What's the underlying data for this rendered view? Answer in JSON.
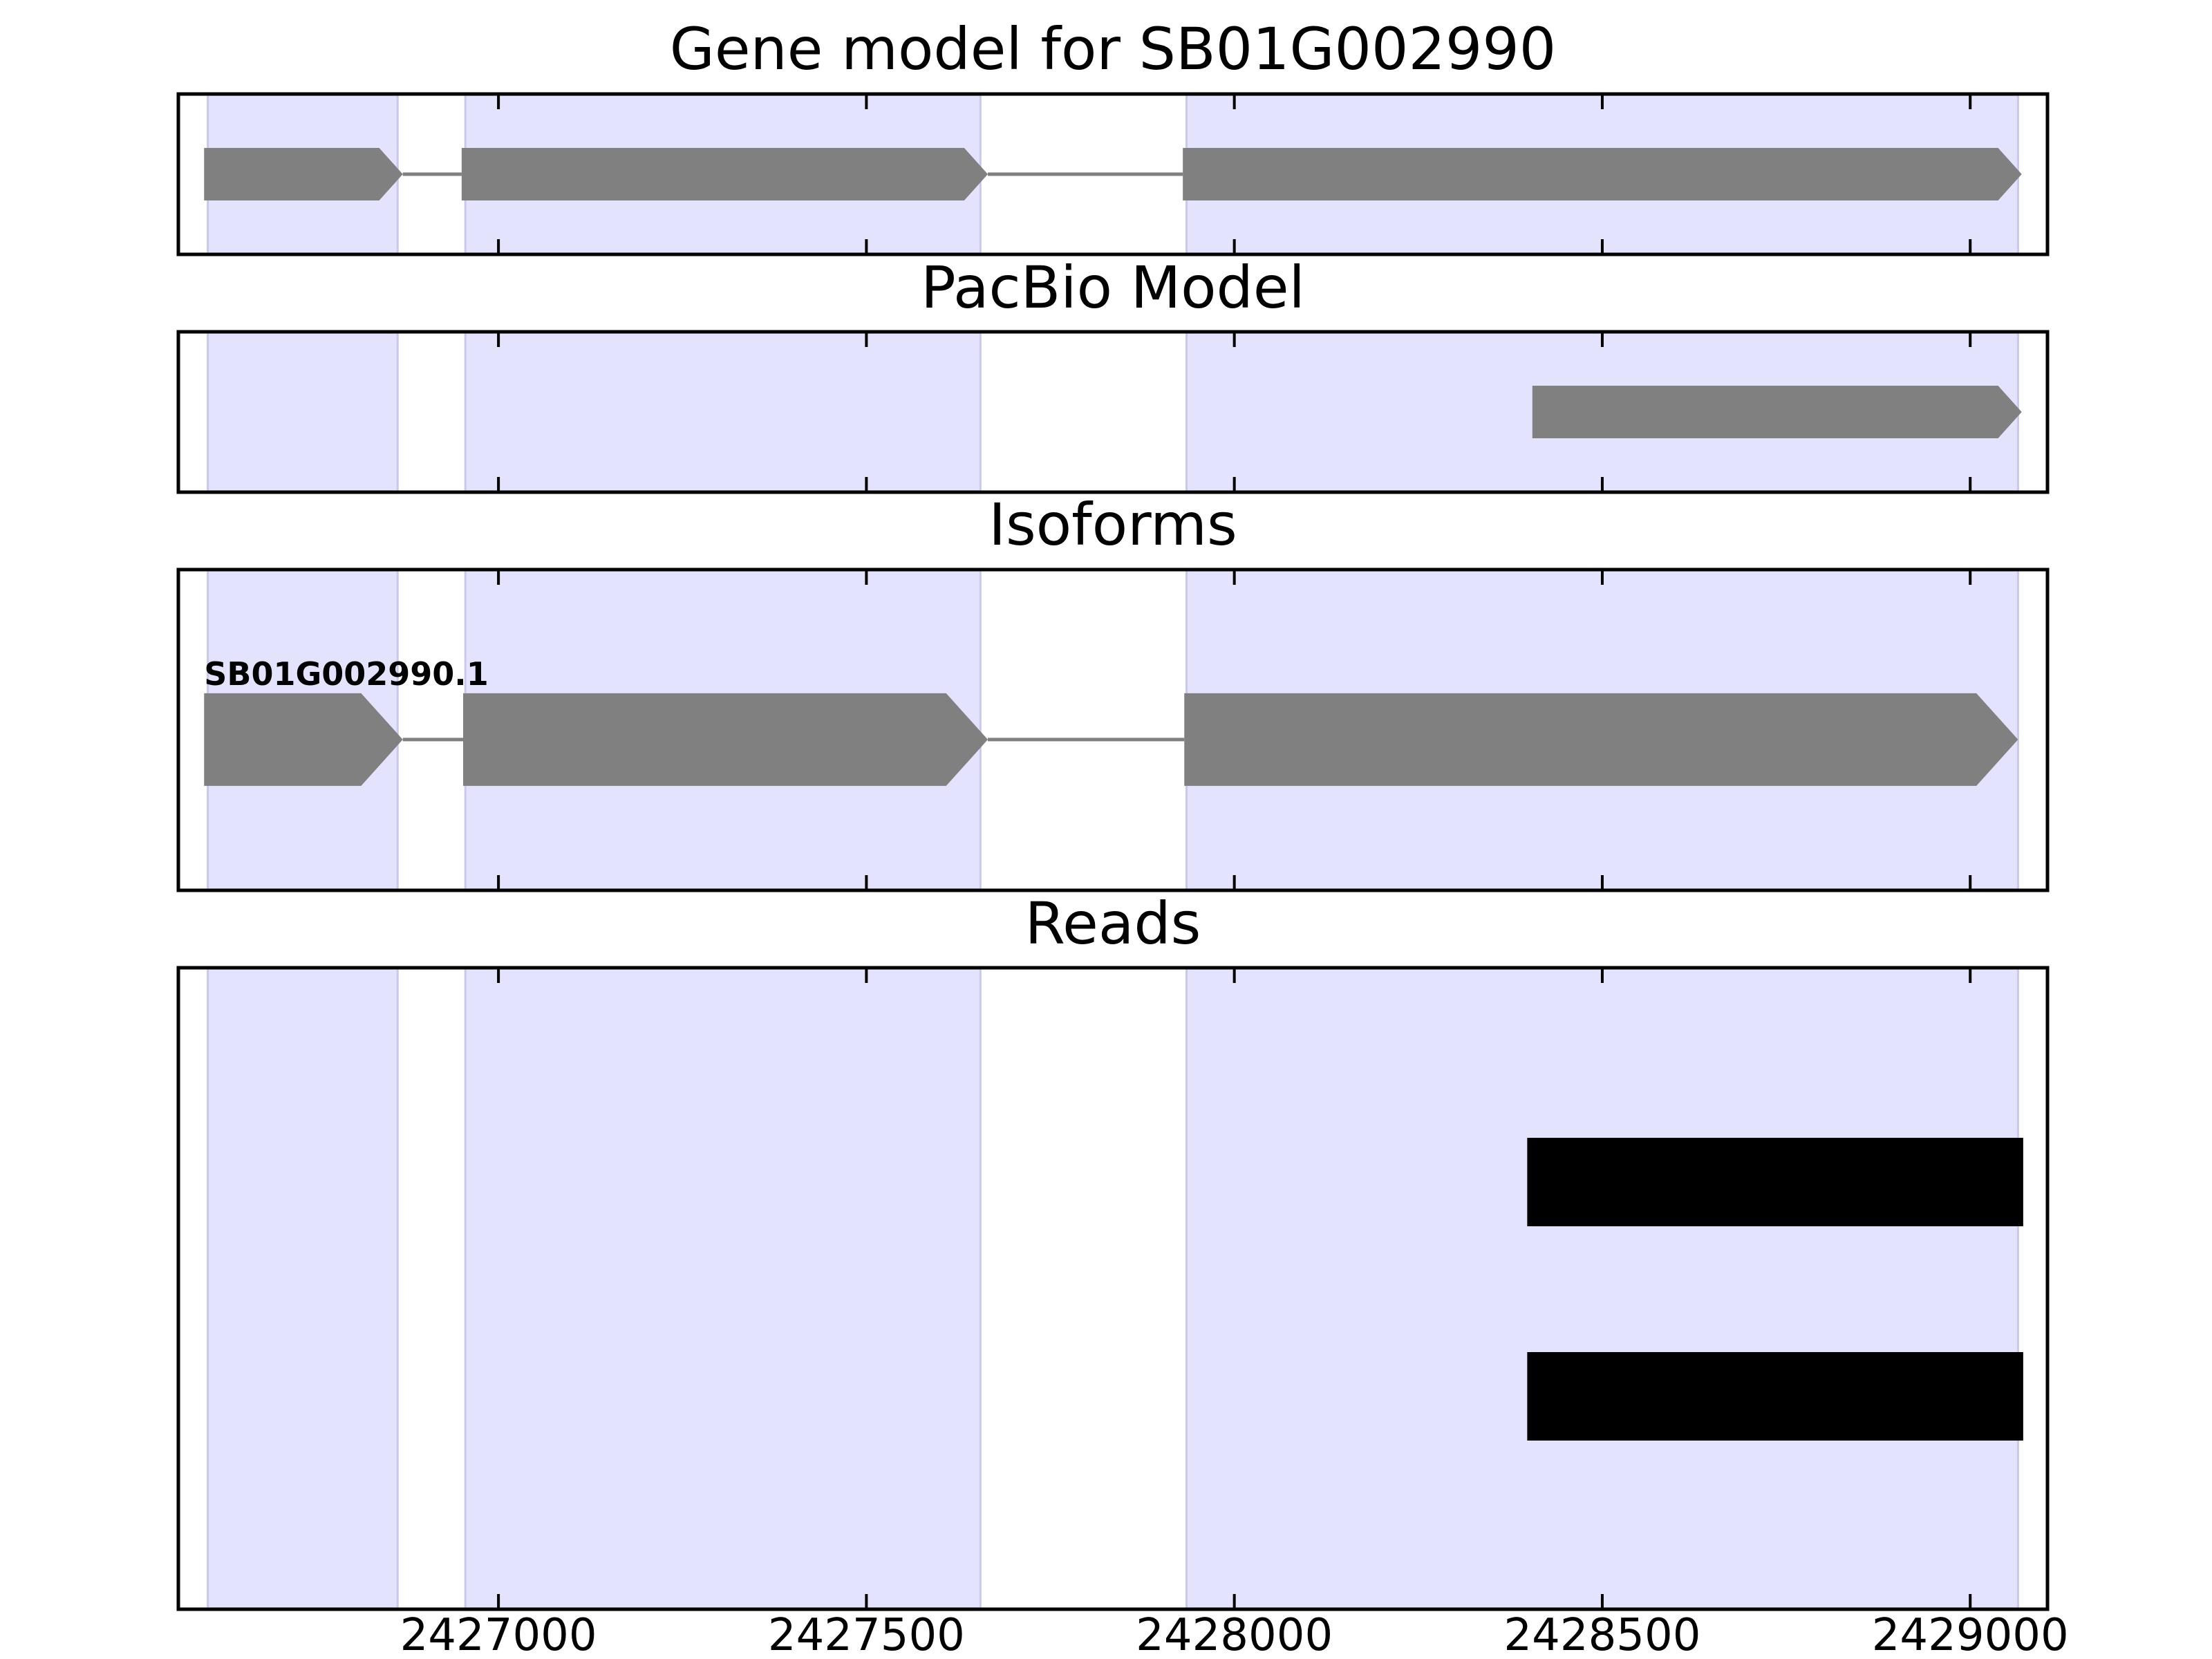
{
  "chart_data": {
    "type": "gene-model",
    "xlim": [
      2426565,
      2429105
    ],
    "x_ticks": [
      {
        "value": 2427000,
        "label": "2427000"
      },
      {
        "value": 2427500,
        "label": "2427500"
      },
      {
        "value": 2428000,
        "label": "2428000"
      },
      {
        "value": 2428500,
        "label": "2428500"
      },
      {
        "value": 2429000,
        "label": "2429000"
      }
    ],
    "highlight_regions": [
      [
        2426605,
        2426863
      ],
      [
        2426955,
        2427655
      ],
      [
        2427935,
        2429065
      ]
    ],
    "colors": {
      "highlight": "#e3e3fd",
      "highlight_edge": "#c9c9ee",
      "exon": "#808080",
      "intron": "#808080",
      "read": "#000000",
      "frame": "#000000"
    },
    "panels": [
      {
        "id": "gene-model",
        "title": "Gene model for SB01G002990",
        "exons": [
          [
            2426600,
            2426870
          ],
          [
            2426950,
            2427665
          ],
          [
            2427930,
            2429070
          ]
        ],
        "strand": "+"
      },
      {
        "id": "pacbio-model",
        "title": "PacBio Model",
        "exons": [
          [
            2428405,
            2429070
          ]
        ],
        "strand": "+"
      },
      {
        "id": "isoforms",
        "title": "Isoforms",
        "isoforms": [
          {
            "label": "SB01G002990.1",
            "exons": [
              [
                2426600,
                2426870
              ],
              [
                2426952,
                2427665
              ],
              [
                2427932,
                2429065
              ]
            ],
            "strand": "+"
          }
        ]
      },
      {
        "id": "reads",
        "title": "Reads",
        "reads": [
          {
            "start": 2428398,
            "end": 2429072
          },
          {
            "start": 2428398,
            "end": 2429072
          }
        ]
      }
    ]
  }
}
